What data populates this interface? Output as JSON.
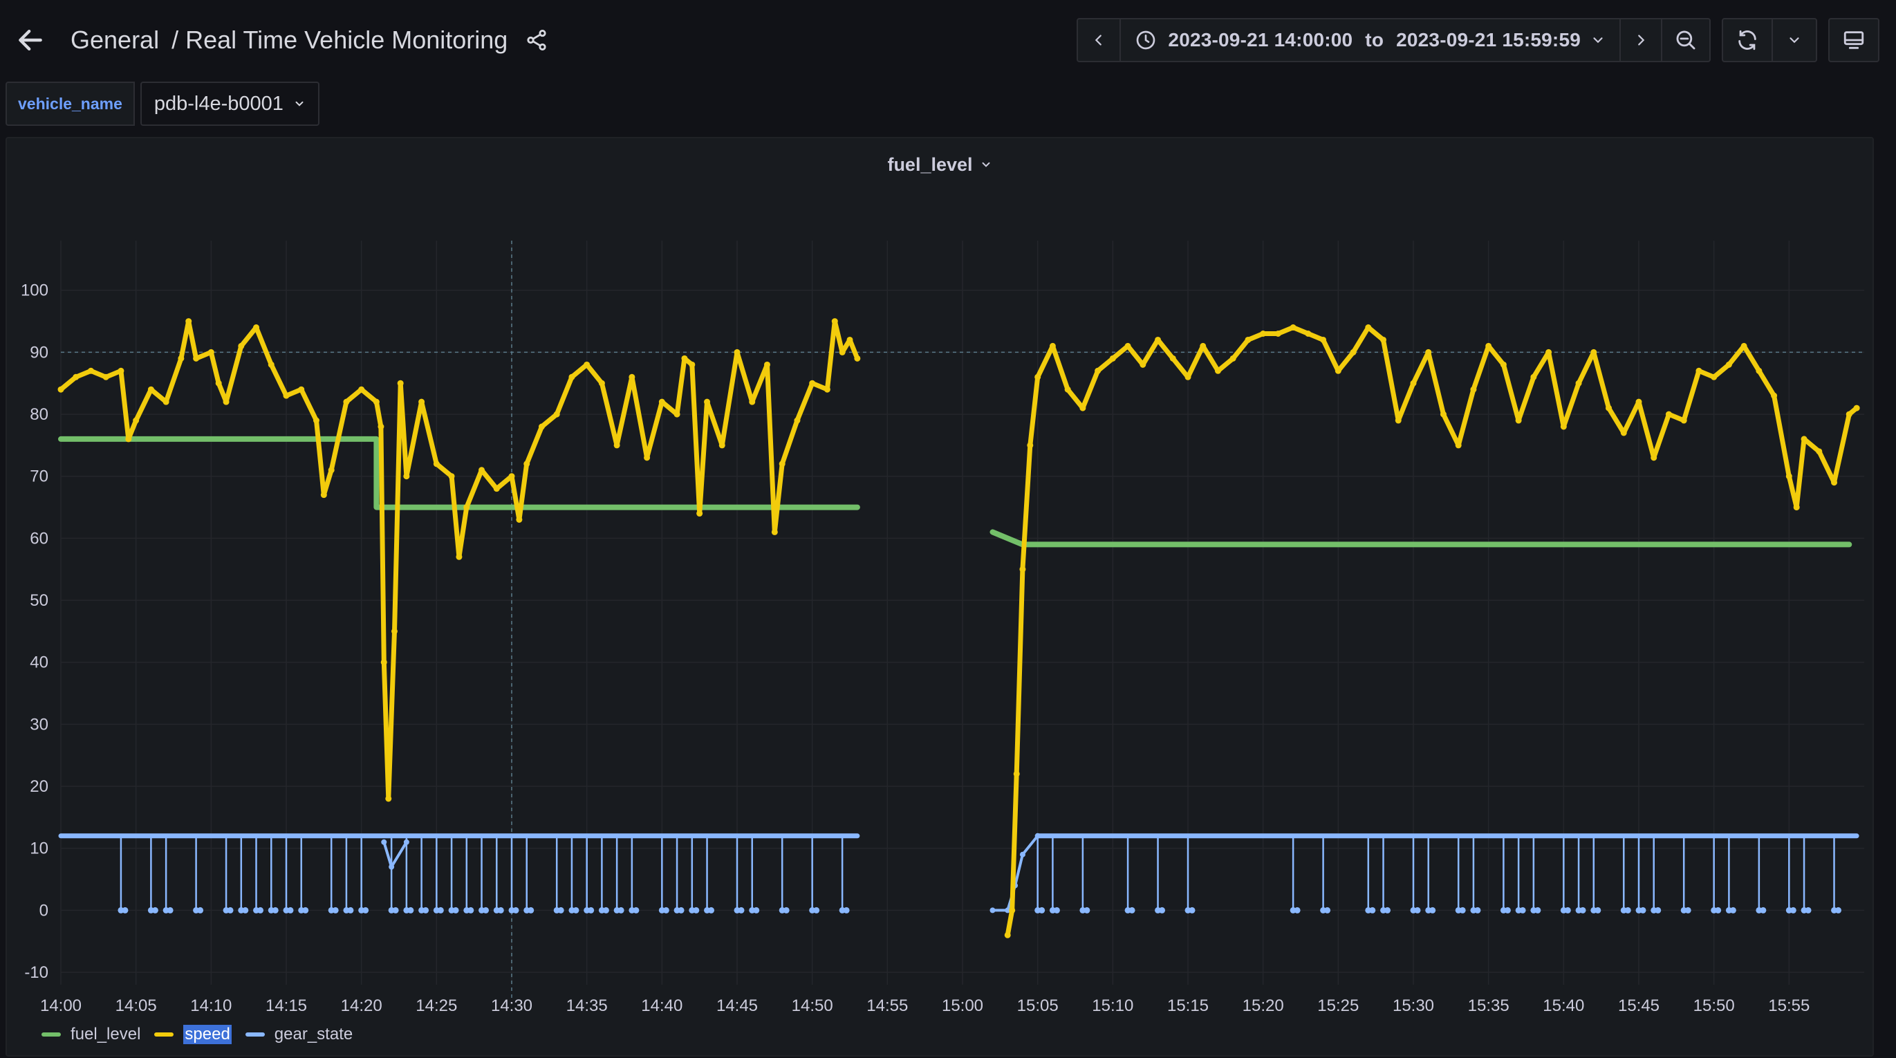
{
  "header": {
    "folder": "General",
    "separator": "/",
    "dashboard_title": "Real Time Vehicle Monitoring"
  },
  "toolbar": {
    "time_from": "2023-09-21 14:00:00",
    "time_to_word": "to",
    "time_to": "2023-09-21 15:59:59"
  },
  "variables": {
    "label": "vehicle_name",
    "value": "pdb-l4e-b0001"
  },
  "panel": {
    "title": "fuel_level"
  },
  "colors": {
    "fuel_level": "#73bf69",
    "speed": "#f2cc0c",
    "gear_state": "#8ab8ff",
    "grid": "#24262b",
    "crosshair": "#5a7a8a"
  },
  "icons": {
    "back": "arrow-left-icon",
    "share": "share-icon",
    "prev": "chevron-left-icon",
    "clock": "clock-icon",
    "next": "chevron-right-icon",
    "zoom": "zoom-out-icon",
    "refresh": "refresh-icon",
    "tv": "tv-mode-icon"
  },
  "legend": [
    {
      "name": "fuel_level",
      "color": "#73bf69",
      "selected": false
    },
    {
      "name": "speed",
      "color": "#f2cc0c",
      "selected": true
    },
    {
      "name": "gear_state",
      "color": "#8ab8ff",
      "selected": false
    }
  ],
  "chart_data": {
    "type": "line",
    "title": "fuel_level",
    "x_unit": "time (2023-09-21)",
    "xlim": [
      "14:00",
      "16:00"
    ],
    "ylim": [
      -12,
      108
    ],
    "grid": true,
    "legend_position": "bottom-left",
    "y_ticks": [
      100,
      90,
      80,
      70,
      60,
      50,
      40,
      30,
      20,
      10,
      0,
      -10
    ],
    "x_ticks": [
      "14:00",
      "14:05",
      "14:10",
      "14:15",
      "14:20",
      "14:25",
      "14:30",
      "14:35",
      "14:40",
      "14:45",
      "14:50",
      "14:55",
      "15:00",
      "15:05",
      "15:10",
      "15:15",
      "15:20",
      "15:25",
      "15:30",
      "15:35",
      "15:40",
      "15:45",
      "15:50",
      "15:55"
    ],
    "threshold_line_y": 90,
    "crosshair_x": "14:30",
    "series": [
      {
        "name": "fuel_level",
        "points": [
          [
            "14:00",
            76
          ],
          [
            "14:21",
            76
          ],
          [
            "14:21",
            65
          ],
          [
            "14:53",
            65
          ],
          null,
          [
            "15:02",
            61
          ],
          [
            "15:03",
            60
          ],
          [
            "15:04",
            59
          ],
          [
            "15:59",
            59
          ]
        ]
      },
      {
        "name": "speed",
        "points": [
          [
            "14:00",
            84
          ],
          [
            "14:01",
            86
          ],
          [
            "14:02",
            87
          ],
          [
            "14:03",
            86
          ],
          [
            "14:04",
            87
          ],
          [
            "14:04.5",
            76
          ],
          [
            "14:05",
            79
          ],
          [
            "14:06",
            84
          ],
          [
            "14:07",
            82
          ],
          [
            "14:08",
            89
          ],
          [
            "14:08.5",
            95
          ],
          [
            "14:09",
            89
          ],
          [
            "14:10",
            90
          ],
          [
            "14:10.5",
            85
          ],
          [
            "14:11",
            82
          ],
          [
            "14:12",
            91
          ],
          [
            "14:13",
            94
          ],
          [
            "14:14",
            88
          ],
          [
            "14:15",
            83
          ],
          [
            "14:16",
            84
          ],
          [
            "14:17",
            79
          ],
          [
            "14:17.5",
            67
          ],
          [
            "14:18",
            71
          ],
          [
            "14:19",
            82
          ],
          [
            "14:20",
            84
          ],
          [
            "14:21",
            82
          ],
          [
            "14:21.3",
            78
          ],
          [
            "14:21.5",
            40
          ],
          [
            "14:21.8",
            18
          ],
          [
            "14:22.2",
            45
          ],
          [
            "14:22.6",
            85
          ],
          [
            "14:23",
            70
          ],
          [
            "14:24",
            82
          ],
          [
            "14:25",
            72
          ],
          [
            "14:26",
            70
          ],
          [
            "14:26.5",
            57
          ],
          [
            "14:27",
            65
          ],
          [
            "14:28",
            71
          ],
          [
            "14:29",
            68
          ],
          [
            "14:30",
            70
          ],
          [
            "14:30.5",
            63
          ],
          [
            "14:31",
            72
          ],
          [
            "14:32",
            78
          ],
          [
            "14:33",
            80
          ],
          [
            "14:34",
            86
          ],
          [
            "14:35",
            88
          ],
          [
            "14:36",
            85
          ],
          [
            "14:37",
            75
          ],
          [
            "14:38",
            86
          ],
          [
            "14:39",
            73
          ],
          [
            "14:40",
            82
          ],
          [
            "14:41",
            80
          ],
          [
            "14:41.5",
            89
          ],
          [
            "14:42",
            88
          ],
          [
            "14:42.5",
            64
          ],
          [
            "14:43",
            82
          ],
          [
            "14:44",
            75
          ],
          [
            "14:45",
            90
          ],
          [
            "14:46",
            82
          ],
          [
            "14:47",
            88
          ],
          [
            "14:47.5",
            61
          ],
          [
            "14:48",
            72
          ],
          [
            "14:49",
            79
          ],
          [
            "14:50",
            85
          ],
          [
            "14:51",
            84
          ],
          [
            "14:51.5",
            95
          ],
          [
            "14:52",
            90
          ],
          [
            "14:52.5",
            92
          ],
          [
            "14:53",
            89
          ],
          null,
          [
            "15:03",
            -4
          ],
          [
            "15:03.3",
            0
          ],
          [
            "15:03.6",
            22
          ],
          [
            "15:04",
            55
          ],
          [
            "15:04.5",
            75
          ],
          [
            "15:05",
            86
          ],
          [
            "15:06",
            91
          ],
          [
            "15:07",
            84
          ],
          [
            "15:08",
            81
          ],
          [
            "15:09",
            87
          ],
          [
            "15:10",
            89
          ],
          [
            "15:11",
            91
          ],
          [
            "15:12",
            88
          ],
          [
            "15:13",
            92
          ],
          [
            "15:14",
            89
          ],
          [
            "15:15",
            86
          ],
          [
            "15:16",
            91
          ],
          [
            "15:17",
            87
          ],
          [
            "15:18",
            89
          ],
          [
            "15:19",
            92
          ],
          [
            "15:20",
            93
          ],
          [
            "15:21",
            93
          ],
          [
            "15:22",
            94
          ],
          [
            "15:23",
            93
          ],
          [
            "15:24",
            92
          ],
          [
            "15:25",
            87
          ],
          [
            "15:26",
            90
          ],
          [
            "15:27",
            94
          ],
          [
            "15:28",
            92
          ],
          [
            "15:29",
            79
          ],
          [
            "15:30",
            85
          ],
          [
            "15:31",
            90
          ],
          [
            "15:32",
            80
          ],
          [
            "15:33",
            75
          ],
          [
            "15:34",
            84
          ],
          [
            "15:35",
            91
          ],
          [
            "15:36",
            88
          ],
          [
            "15:37",
            79
          ],
          [
            "15:38",
            86
          ],
          [
            "15:39",
            90
          ],
          [
            "15:40",
            78
          ],
          [
            "15:41",
            85
          ],
          [
            "15:42",
            90
          ],
          [
            "15:43",
            81
          ],
          [
            "15:44",
            77
          ],
          [
            "15:45",
            82
          ],
          [
            "15:46",
            73
          ],
          [
            "15:47",
            80
          ],
          [
            "15:48",
            79
          ],
          [
            "15:49",
            87
          ],
          [
            "15:50",
            86
          ],
          [
            "15:51",
            88
          ],
          [
            "15:52",
            91
          ],
          [
            "15:53",
            87
          ],
          [
            "15:54",
            83
          ],
          [
            "15:55",
            70
          ],
          [
            "15:55.5",
            65
          ],
          [
            "15:56",
            76
          ],
          [
            "15:57",
            74
          ],
          [
            "15:58",
            69
          ],
          [
            "15:59",
            80
          ],
          [
            "15:59.5",
            81
          ]
        ]
      },
      {
        "name": "gear_state",
        "baseline": 12,
        "drops_to_zero_at": [
          "14:04",
          "14:06",
          "14:07",
          "14:09",
          "14:11",
          "14:12",
          "14:13",
          "14:14",
          "14:15",
          "14:16",
          "14:18",
          "14:19",
          "14:20",
          "14:22",
          "14:23",
          "14:24",
          "14:25",
          "14:26",
          "14:27",
          "14:28",
          "14:29",
          "14:30",
          "14:31",
          "14:33",
          "14:34",
          "14:35",
          "14:36",
          "14:37",
          "14:38",
          "14:40",
          "14:41",
          "14:42",
          "14:43",
          "14:45",
          "14:46",
          "14:48",
          "14:50",
          "14:52",
          "15:05",
          "15:06",
          "15:08",
          "15:11",
          "15:13",
          "15:15",
          "15:22",
          "15:24",
          "15:27",
          "15:28",
          "15:30",
          "15:31",
          "15:33",
          "15:34",
          "15:36",
          "15:37",
          "15:38",
          "15:40",
          "15:41",
          "15:42",
          "15:44",
          "15:45",
          "15:46",
          "15:48",
          "15:50",
          "15:51",
          "15:53",
          "15:55",
          "15:56",
          "15:58"
        ],
        "startup_ramp": [
          [
            "15:02",
            0
          ],
          [
            "15:03",
            0
          ],
          [
            "15:03.5",
            4
          ],
          [
            "15:04",
            9
          ],
          [
            "15:05",
            12
          ]
        ],
        "dip_near": [
          [
            "14:21.5",
            11
          ],
          [
            "14:22",
            7
          ],
          [
            "14:23",
            11
          ]
        ]
      }
    ]
  }
}
